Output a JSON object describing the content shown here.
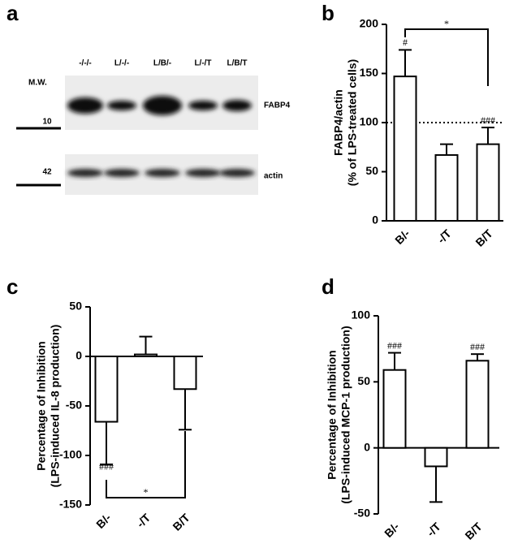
{
  "chart_data": [
    {
      "type": "blot",
      "panel": "a",
      "lanes": [
        "-/-/-",
        "L/-/-",
        "L/B/-",
        "L/-/T",
        "L/B/T"
      ],
      "bands": [
        "FABP4",
        "actin"
      ],
      "mw_title": "M.W.",
      "mw": [
        "10",
        "42"
      ]
    },
    {
      "type": "bar",
      "panel": "b",
      "ylabel": [
        "FABP4/actin",
        "(% of LPS-treated cells)"
      ],
      "categories": [
        "B/-",
        "-/T",
        "B/T"
      ],
      "values": [
        147,
        67,
        78
      ],
      "errors": [
        27,
        11,
        17
      ],
      "ylim": [
        0,
        200
      ],
      "yticks": [
        0,
        50,
        100,
        150,
        200
      ],
      "refline": 100,
      "annotations": [
        {
          "text": "#",
          "category": "B/-"
        },
        {
          "text": "###",
          "category": "B/T"
        }
      ],
      "bracket": {
        "text": "*",
        "from": "B/-",
        "to": "B/T"
      }
    },
    {
      "type": "bar",
      "panel": "c",
      "ylabel": [
        "Percentage of Inhibition",
        "(LPS-induced IL-8 production)"
      ],
      "categories": [
        "B/-",
        "-/T",
        "B/T"
      ],
      "values": [
        -66,
        2,
        -33
      ],
      "errors": [
        43,
        18,
        41
      ],
      "ylim": [
        -150,
        50
      ],
      "yticks": [
        -150,
        -100,
        -50,
        0,
        50
      ],
      "annotations": [
        {
          "text": "###",
          "category": "B/-"
        }
      ],
      "bracket": {
        "text": "*",
        "from": "B/-",
        "to": "B/T"
      }
    },
    {
      "type": "bar",
      "panel": "d",
      "ylabel": [
        "Percentage of Inhibition",
        "(LPS-induced MCP-1 production)"
      ],
      "categories": [
        "B/-",
        "-/T",
        "B/T"
      ],
      "values": [
        59,
        -14,
        66
      ],
      "errors": [
        13,
        27,
        5
      ],
      "ylim": [
        -50,
        100
      ],
      "yticks": [
        -50,
        0,
        50,
        100
      ],
      "annotations": [
        {
          "text": "###",
          "category": "B/-"
        },
        {
          "text": "###",
          "category": "B/T"
        }
      ]
    }
  ]
}
